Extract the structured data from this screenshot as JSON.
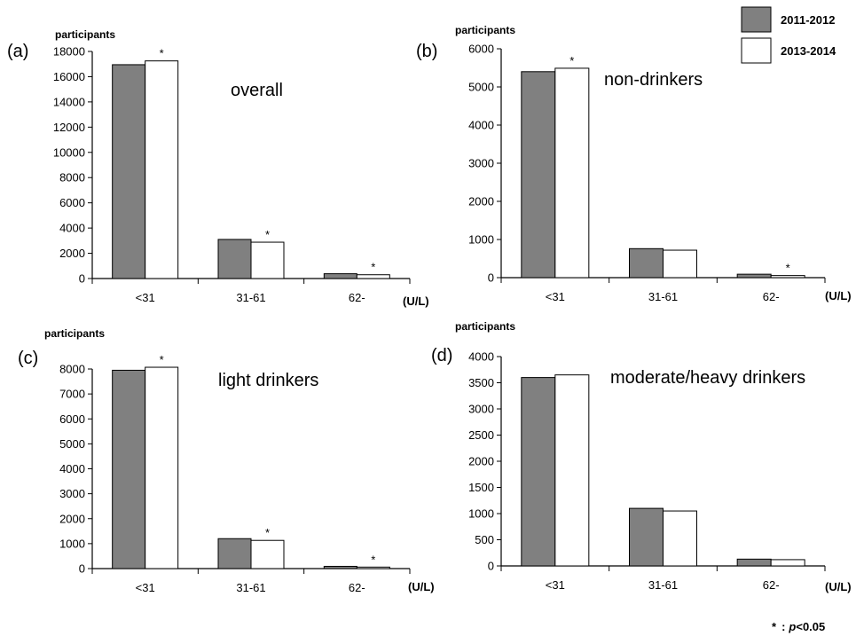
{
  "legend": [
    {
      "label": "2011-2012",
      "color": "#808080"
    },
    {
      "label": "2013-2014",
      "color": "#ffffff"
    }
  ],
  "footnote": {
    "star": "*",
    "sep": ":",
    "p": "p",
    "rest": "<0.05"
  },
  "chart_data": [
    {
      "type": "bar",
      "panel_label": "(a)",
      "title": "overall",
      "ylabel": "participants",
      "unit": "(U/L)",
      "categories": [
        "<31",
        "31-61",
        "62-"
      ],
      "series": [
        {
          "name": "2011-2012",
          "values": [
            16950,
            3100,
            380
          ]
        },
        {
          "name": "2013-2014",
          "values": [
            17250,
            2880,
            300
          ]
        }
      ],
      "significance": [
        true,
        true,
        true
      ],
      "ylim": [
        0,
        18000
      ],
      "yticks": [
        0,
        2000,
        4000,
        6000,
        8000,
        10000,
        12000,
        14000,
        16000,
        18000
      ]
    },
    {
      "type": "bar",
      "panel_label": "(b)",
      "title": "non-drinkers",
      "ylabel": "participants",
      "unit": "(U/L)",
      "categories": [
        "<31",
        "31-61",
        "62-"
      ],
      "series": [
        {
          "name": "2011-2012",
          "values": [
            5400,
            760,
            90
          ]
        },
        {
          "name": "2013-2014",
          "values": [
            5490,
            720,
            55
          ]
        }
      ],
      "significance": [
        true,
        false,
        true
      ],
      "ylim": [
        0,
        6000
      ],
      "yticks": [
        0,
        1000,
        2000,
        3000,
        4000,
        5000,
        6000
      ]
    },
    {
      "type": "bar",
      "panel_label": "(c)",
      "title": "light drinkers",
      "ylabel": "participants",
      "unit": "(U/L)",
      "categories": [
        "<31",
        "31-61",
        "62-"
      ],
      "series": [
        {
          "name": "2011-2012",
          "values": [
            7950,
            1200,
            90
          ]
        },
        {
          "name": "2013-2014",
          "values": [
            8070,
            1130,
            60
          ]
        }
      ],
      "significance": [
        true,
        true,
        true
      ],
      "ylim": [
        0,
        8000
      ],
      "yticks": [
        0,
        1000,
        2000,
        3000,
        4000,
        5000,
        6000,
        7000,
        8000
      ]
    },
    {
      "type": "bar",
      "panel_label": "(d)",
      "title": "moderate/heavy drinkers",
      "ylabel": "participants",
      "unit": "(U/L)",
      "categories": [
        "<31",
        "31-61",
        "62-"
      ],
      "series": [
        {
          "name": "2011-2012",
          "values": [
            3600,
            1100,
            130
          ]
        },
        {
          "name": "2013-2014",
          "values": [
            3650,
            1050,
            120
          ]
        }
      ],
      "significance": [
        false,
        false,
        false
      ],
      "ylim": [
        0,
        4000
      ],
      "yticks": [
        0,
        500,
        1000,
        1500,
        2000,
        2500,
        3000,
        3500,
        4000
      ]
    }
  ]
}
